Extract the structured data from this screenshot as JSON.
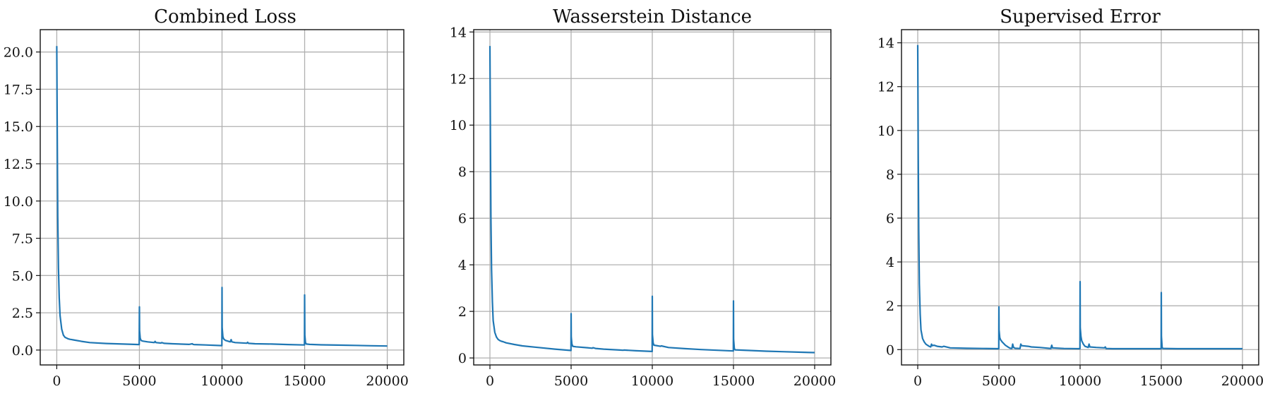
{
  "chart_data": [
    {
      "type": "line",
      "title": "Combined Loss",
      "xlabel": "",
      "ylabel": "",
      "xlim": [
        -1000,
        21000
      ],
      "ylim": [
        -1.0,
        21.5
      ],
      "xticks": [
        0,
        5000,
        10000,
        15000,
        20000
      ],
      "xtick_labels": [
        "0",
        "5000",
        "10000",
        "15000",
        "20000"
      ],
      "yticks": [
        0.0,
        2.5,
        5.0,
        7.5,
        10.0,
        12.5,
        15.0,
        17.5,
        20.0
      ],
      "ytick_labels": [
        "0.0",
        "2.5",
        "5.0",
        "7.5",
        "10.0",
        "12.5",
        "15.0",
        "17.5",
        "20.0"
      ],
      "grid": true,
      "line_color": "#1f77b4",
      "series": [
        {
          "x": [
            0,
            30,
            60,
            100,
            150,
            200,
            300,
            400,
            500,
            600,
            700,
            800,
            900,
            1000,
            1500,
            2000,
            3000,
            4000,
            4990,
            5000,
            5010,
            5050,
            5100,
            5200,
            5500,
            5900,
            5950,
            6000,
            6300,
            6350,
            6500,
            7000,
            8000,
            8200,
            8250,
            8300,
            9000,
            9990,
            10000,
            10010,
            10050,
            10100,
            10200,
            10500,
            10550,
            10600,
            10800,
            11500,
            11550,
            11600,
            12000,
            13000,
            14000,
            14990,
            15000,
            15010,
            15050,
            15100,
            15300,
            16000,
            17000,
            18000,
            19000,
            20000
          ],
          "y": [
            20.4,
            14.5,
            9.0,
            5.5,
            3.5,
            2.3,
            1.4,
            1.0,
            0.85,
            0.8,
            0.75,
            0.72,
            0.7,
            0.68,
            0.58,
            0.5,
            0.44,
            0.4,
            0.37,
            2.9,
            1.3,
            0.8,
            0.65,
            0.6,
            0.55,
            0.5,
            0.58,
            0.5,
            0.47,
            0.5,
            0.45,
            0.42,
            0.38,
            0.42,
            0.38,
            0.37,
            0.34,
            0.3,
            4.2,
            1.5,
            0.9,
            0.75,
            0.65,
            0.55,
            0.7,
            0.55,
            0.5,
            0.46,
            0.52,
            0.45,
            0.42,
            0.4,
            0.37,
            0.34,
            3.7,
            1.0,
            0.5,
            0.4,
            0.38,
            0.35,
            0.33,
            0.31,
            0.29,
            0.27
          ]
        }
      ]
    },
    {
      "type": "line",
      "title": "Wasserstein Distance",
      "xlabel": "",
      "ylabel": "",
      "xlim": [
        -1000,
        21000
      ],
      "ylim": [
        -0.3,
        14.1
      ],
      "xticks": [
        0,
        5000,
        10000,
        15000,
        20000
      ],
      "xtick_labels": [
        "0",
        "5000",
        "10000",
        "15000",
        "20000"
      ],
      "yticks": [
        0,
        2,
        4,
        6,
        8,
        10,
        12,
        14
      ],
      "ytick_labels": [
        "0",
        "2",
        "4",
        "6",
        "8",
        "10",
        "12",
        "14"
      ],
      "grid": true,
      "line_color": "#1f77b4",
      "series": [
        {
          "x": [
            0,
            30,
            60,
            100,
            150,
            200,
            300,
            400,
            500,
            600,
            700,
            800,
            1000,
            1500,
            2000,
            3000,
            4000,
            4990,
            5000,
            5010,
            5050,
            5100,
            5300,
            6000,
            6300,
            6350,
            6500,
            7000,
            8000,
            8200,
            8250,
            9000,
            9990,
            10000,
            10010,
            10050,
            10100,
            10500,
            10550,
            11000,
            12000,
            13000,
            14000,
            14990,
            15000,
            15010,
            15050,
            15100,
            16000,
            17000,
            18000,
            19000,
            20000
          ],
          "y": [
            13.4,
            9.5,
            6.0,
            3.8,
            2.4,
            1.6,
            1.1,
            0.9,
            0.8,
            0.75,
            0.72,
            0.7,
            0.65,
            0.58,
            0.52,
            0.45,
            0.38,
            0.32,
            1.9,
            0.9,
            0.6,
            0.5,
            0.48,
            0.44,
            0.42,
            0.44,
            0.41,
            0.38,
            0.34,
            0.33,
            0.34,
            0.31,
            0.28,
            2.65,
            1.0,
            0.65,
            0.55,
            0.5,
            0.52,
            0.45,
            0.4,
            0.36,
            0.33,
            0.3,
            2.45,
            0.8,
            0.4,
            0.35,
            0.32,
            0.29,
            0.27,
            0.25,
            0.23
          ]
        }
      ]
    },
    {
      "type": "line",
      "title": "Supervised Error",
      "xlabel": "",
      "ylabel": "",
      "xlim": [
        -1000,
        21000
      ],
      "ylim": [
        -0.7,
        14.6
      ],
      "xticks": [
        0,
        5000,
        10000,
        15000,
        20000
      ],
      "xtick_labels": [
        "0",
        "5000",
        "10000",
        "15000",
        "20000"
      ],
      "yticks": [
        0,
        2,
        4,
        6,
        8,
        10,
        12,
        14
      ],
      "ytick_labels": [
        "0",
        "2",
        "4",
        "6",
        "8",
        "10",
        "12",
        "14"
      ],
      "grid": true,
      "line_color": "#1f77b4",
      "series": [
        {
          "x": [
            0,
            30,
            60,
            100,
            150,
            200,
            300,
            400,
            500,
            600,
            700,
            800,
            850,
            900,
            1000,
            1200,
            1500,
            1600,
            2000,
            3000,
            4000,
            4990,
            5000,
            5010,
            5050,
            5100,
            5200,
            5400,
            5600,
            5700,
            5800,
            5850,
            5900,
            6000,
            6300,
            6350,
            6400,
            6800,
            7000,
            7500,
            8200,
            8250,
            8300,
            9000,
            9990,
            10000,
            10010,
            10050,
            10100,
            10200,
            10300,
            10500,
            10550,
            10600,
            11000,
            11500,
            11550,
            11600,
            12000,
            13000,
            14000,
            14990,
            15000,
            15010,
            15050,
            15100,
            16000,
            17000,
            18000,
            19000,
            20000
          ],
          "y": [
            13.9,
            9.0,
            5.5,
            3.0,
            1.6,
            0.9,
            0.5,
            0.35,
            0.25,
            0.2,
            0.15,
            0.12,
            0.25,
            0.18,
            0.2,
            0.15,
            0.12,
            0.15,
            0.08,
            0.06,
            0.05,
            0.04,
            1.95,
            0.9,
            0.55,
            0.45,
            0.35,
            0.2,
            0.1,
            0.06,
            0.05,
            0.25,
            0.1,
            0.06,
            0.05,
            0.25,
            0.18,
            0.15,
            0.12,
            0.1,
            0.05,
            0.2,
            0.08,
            0.05,
            0.04,
            3.1,
            1.0,
            0.6,
            0.4,
            0.25,
            0.15,
            0.1,
            0.25,
            0.12,
            0.1,
            0.08,
            0.12,
            0.05,
            0.04,
            0.04,
            0.04,
            0.04,
            2.6,
            0.6,
            0.1,
            0.05,
            0.04,
            0.04,
            0.04,
            0.04,
            0.04
          ]
        }
      ]
    }
  ]
}
